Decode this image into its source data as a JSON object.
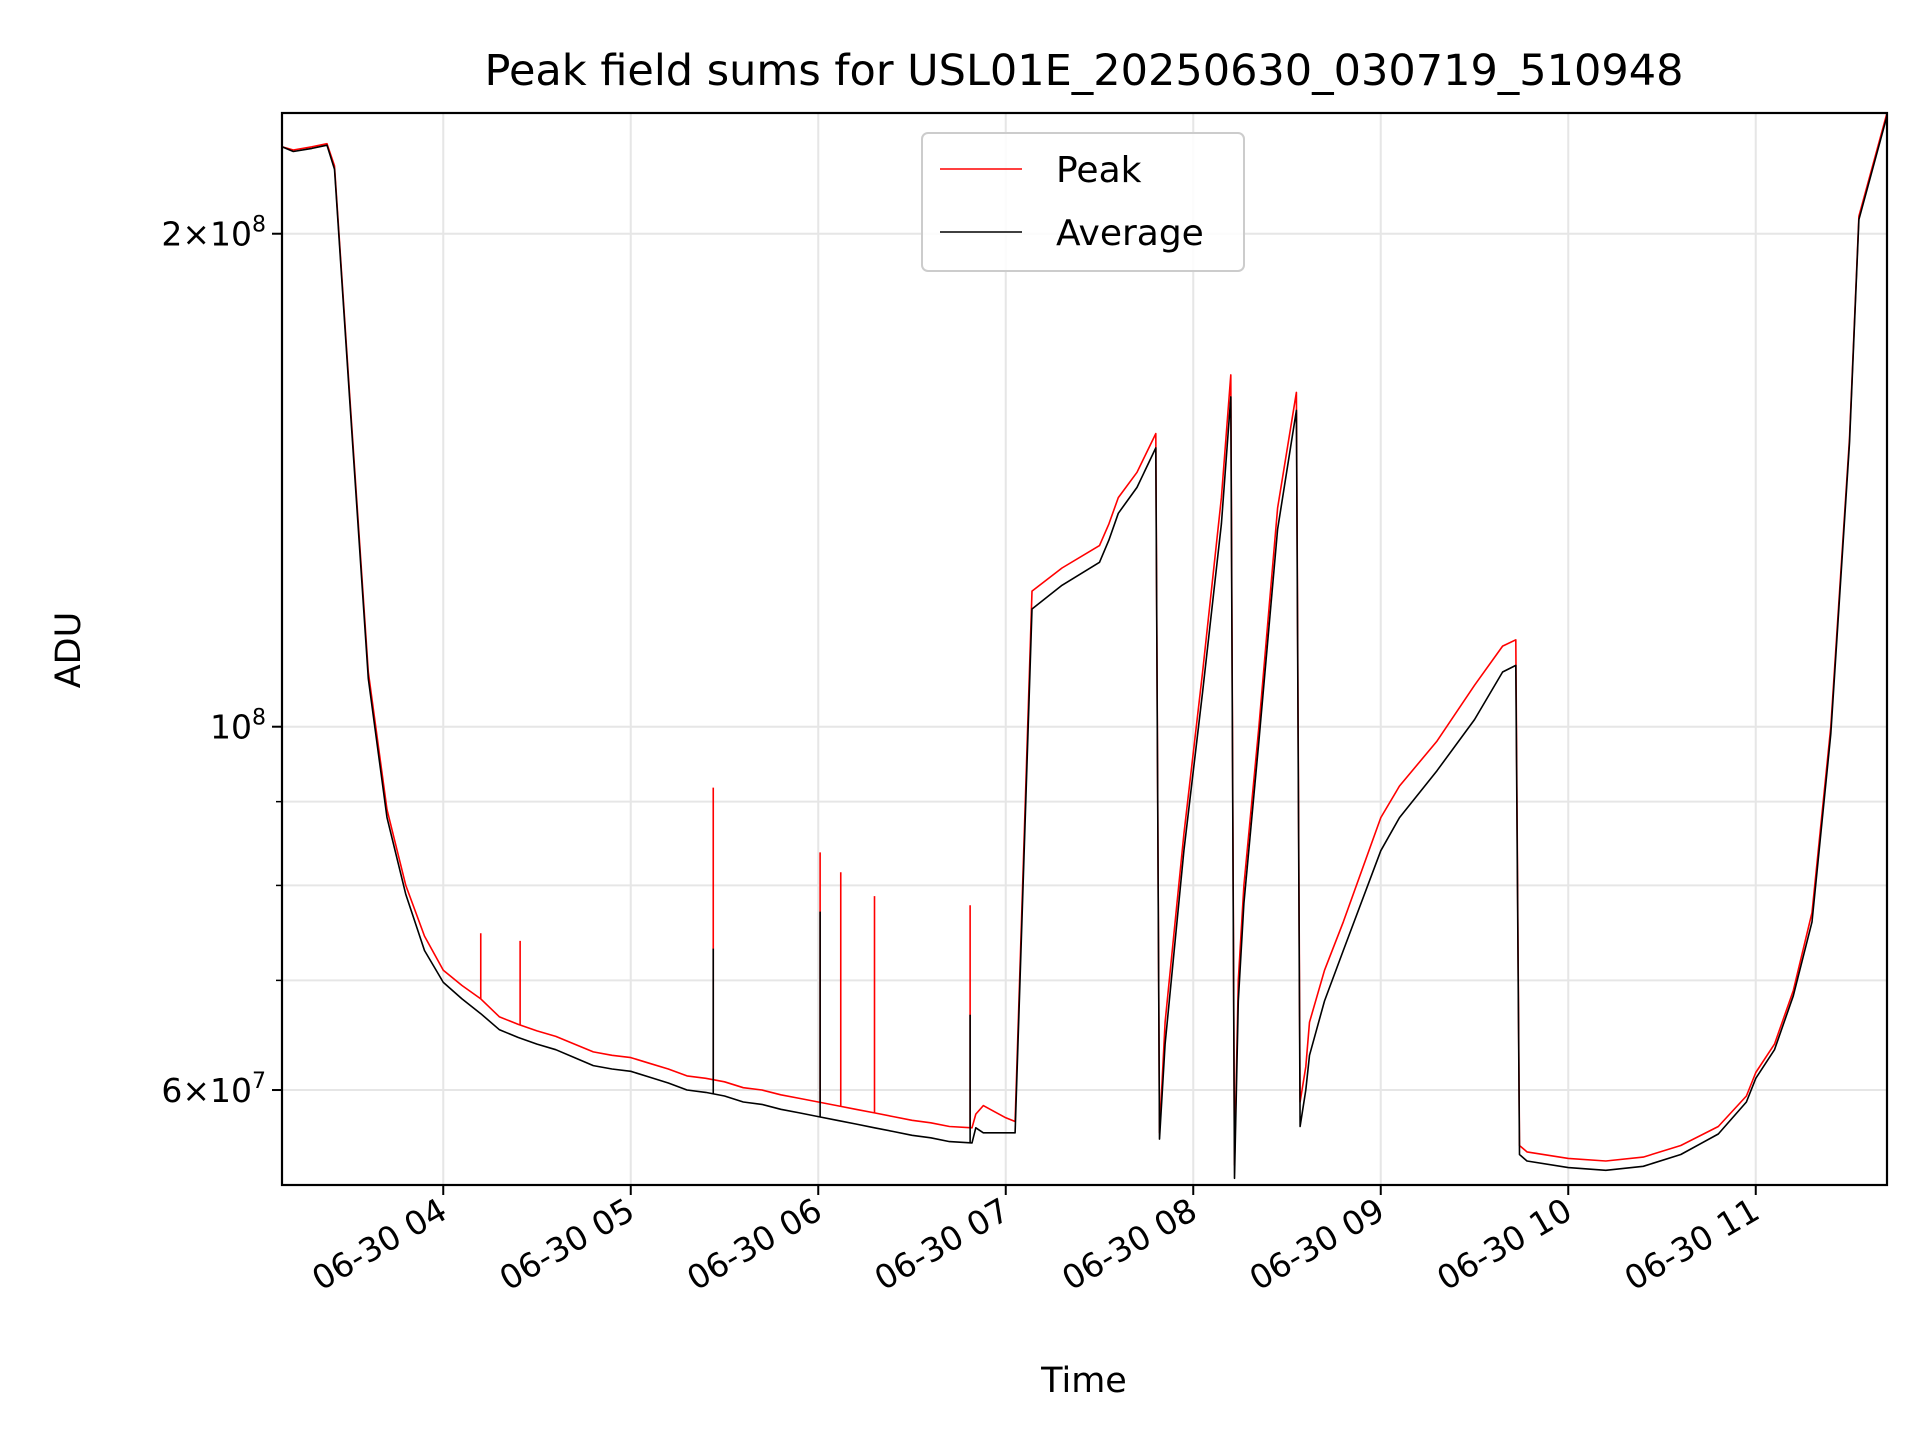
{
  "chart_data": {
    "type": "line",
    "title": "Peak field sums for USL01E_20250630_030719_510948",
    "xlabel": "Time",
    "ylabel": "ADU",
    "x_unit": "hours after 2025-06-30 00:00",
    "xlim": [
      3.14,
      11.7
    ],
    "ylim": [
      52500000,
      237000000
    ],
    "y_scale": "log",
    "grid": true,
    "legend_position": "top-center",
    "x_ticks": [
      {
        "value": 4,
        "label": "06-30 04"
      },
      {
        "value": 5,
        "label": "06-30 05"
      },
      {
        "value": 6,
        "label": "06-30 06"
      },
      {
        "value": 7,
        "label": "06-30 07"
      },
      {
        "value": 8,
        "label": "06-30 08"
      },
      {
        "value": 9,
        "label": "06-30 09"
      },
      {
        "value": 10,
        "label": "06-30 10"
      },
      {
        "value": 11,
        "label": "06-30 11"
      }
    ],
    "y_major_ticks": [
      {
        "value": 60000000,
        "mantissa": "6",
        "base": "10",
        "exponent": "7"
      },
      {
        "value": 100000000,
        "mantissa": "",
        "base": "10",
        "exponent": "8"
      },
      {
        "value": 200000000,
        "mantissa": "2",
        "base": "10",
        "exponent": "8"
      }
    ],
    "y_minor_ticks": [
      70000000,
      80000000,
      90000000
    ],
    "series": [
      {
        "name": "Peak",
        "color": "#ff0000",
        "x": [
          3.14,
          3.2,
          3.3,
          3.38,
          3.42,
          3.5,
          3.6,
          3.7,
          3.8,
          3.9,
          4.0,
          4.1,
          4.2,
          4.3,
          4.4,
          4.5,
          4.6,
          4.7,
          4.8,
          4.9,
          5.0,
          5.1,
          5.2,
          5.3,
          5.4,
          5.5,
          5.6,
          5.7,
          5.8,
          5.9,
          6.0,
          6.1,
          6.2,
          6.3,
          6.4,
          6.5,
          6.6,
          6.7,
          6.82,
          6.84,
          6.88,
          6.94,
          7.0,
          7.05,
          7.14,
          7.3,
          7.5,
          7.55,
          7.6,
          7.7,
          7.8,
          7.82,
          7.85,
          7.95,
          8.05,
          8.15,
          8.2,
          8.22,
          8.24,
          8.27,
          8.35,
          8.45,
          8.55,
          8.57,
          8.6,
          8.62,
          8.7,
          8.8,
          9.0,
          9.1,
          9.3,
          9.5,
          9.65,
          9.72,
          9.74,
          9.78,
          10.0,
          10.2,
          10.4,
          10.6,
          10.8,
          10.95,
          11.0,
          11.1,
          11.2,
          11.3,
          11.4,
          11.5,
          11.55,
          11.7
        ],
        "y": [
          226000000,
          225000000,
          226000000,
          227000000,
          220000000,
          160000000,
          108000000,
          89000000,
          80000000,
          74500000,
          71000000,
          69500000,
          68200000,
          66500000,
          65800000,
          65200000,
          64700000,
          64000000,
          63300000,
          63000000,
          62800000,
          62300000,
          61800000,
          61200000,
          61000000,
          60700000,
          60200000,
          60000000,
          59600000,
          59300000,
          59000000,
          58700000,
          58400000,
          58100000,
          57800000,
          57500000,
          57300000,
          57000000,
          56900000,
          58000000,
          58700000,
          58200000,
          57700000,
          57400000,
          121000000,
          125000000,
          129000000,
          133000000,
          138000000,
          143000000,
          151000000,
          56500000,
          66000000,
          86000000,
          108000000,
          138000000,
          164000000,
          54000000,
          70000000,
          80000000,
          100000000,
          136000000,
          160000000,
          59000000,
          62000000,
          66000000,
          71000000,
          76000000,
          88000000,
          92000000,
          98000000,
          106000000,
          112000000,
          113000000,
          55500000,
          55000000,
          54500000,
          54300000,
          54600000,
          55500000,
          57000000,
          59500000,
          61500000,
          64000000,
          69000000,
          77000000,
          100000000,
          150000000,
          205000000,
          237000000
        ]
      },
      {
        "name": "Average",
        "color": "#000000",
        "x": [
          3.14,
          3.2,
          3.3,
          3.38,
          3.42,
          3.5,
          3.6,
          3.7,
          3.8,
          3.9,
          4.0,
          4.1,
          4.2,
          4.3,
          4.4,
          4.5,
          4.6,
          4.7,
          4.8,
          4.9,
          5.0,
          5.1,
          5.2,
          5.3,
          5.4,
          5.5,
          5.6,
          5.7,
          5.8,
          5.9,
          6.0,
          6.1,
          6.2,
          6.3,
          6.4,
          6.5,
          6.6,
          6.7,
          6.82,
          6.84,
          6.88,
          6.94,
          7.0,
          7.05,
          7.14,
          7.3,
          7.5,
          7.55,
          7.6,
          7.7,
          7.8,
          7.82,
          7.85,
          7.95,
          8.05,
          8.15,
          8.2,
          8.22,
          8.24,
          8.27,
          8.35,
          8.45,
          8.55,
          8.57,
          8.6,
          8.62,
          8.7,
          8.8,
          9.0,
          9.1,
          9.3,
          9.5,
          9.65,
          9.72,
          9.74,
          9.78,
          10.0,
          10.2,
          10.4,
          10.6,
          10.8,
          10.95,
          11.0,
          11.1,
          11.2,
          11.3,
          11.4,
          11.5,
          11.55,
          11.7
        ],
        "y": [
          226000000,
          224500000,
          225500000,
          226500000,
          219000000,
          159000000,
          107000000,
          88000000,
          79000000,
          73000000,
          69800000,
          68200000,
          66800000,
          65300000,
          64600000,
          64000000,
          63500000,
          62800000,
          62100000,
          61800000,
          61600000,
          61100000,
          60600000,
          60000000,
          59800000,
          59500000,
          59000000,
          58800000,
          58400000,
          58100000,
          57800000,
          57500000,
          57200000,
          56900000,
          56600000,
          56300000,
          56100000,
          55800000,
          55700000,
          56900000,
          56500000,
          56500000,
          56500000,
          56500000,
          118000000,
          122000000,
          126000000,
          130000000,
          135000000,
          140000000,
          148000000,
          56000000,
          64000000,
          84000000,
          105000000,
          133000000,
          159000000,
          53000000,
          68000000,
          78000000,
          98000000,
          132000000,
          156000000,
          57000000,
          60000000,
          63000000,
          68000000,
          73000000,
          84000000,
          88000000,
          94000000,
          101000000,
          108000000,
          109000000,
          54800000,
          54300000,
          53800000,
          53600000,
          53900000,
          54800000,
          56400000,
          59000000,
          61000000,
          63500000,
          68500000,
          76000000,
          99000000,
          149000000,
          204000000,
          236000000
        ]
      }
    ],
    "spikes": [
      {
        "series": "Peak",
        "x": 4.2,
        "y": 74800000
      },
      {
        "series": "Peak",
        "x": 4.41,
        "y": 74000000
      },
      {
        "series": "Peak",
        "x": 5.44,
        "y": 91800000
      },
      {
        "series": "Peak",
        "x": 6.01,
        "y": 83800000
      },
      {
        "series": "Peak",
        "x": 6.12,
        "y": 81500000
      },
      {
        "series": "Peak",
        "x": 6.3,
        "y": 78800000
      },
      {
        "series": "Peak",
        "x": 6.81,
        "y": 77800000
      },
      {
        "series": "Average",
        "x": 5.44,
        "y": 73200000
      },
      {
        "series": "Average",
        "x": 6.01,
        "y": 77100000
      },
      {
        "series": "Average",
        "x": 6.81,
        "y": 66700000
      }
    ]
  }
}
